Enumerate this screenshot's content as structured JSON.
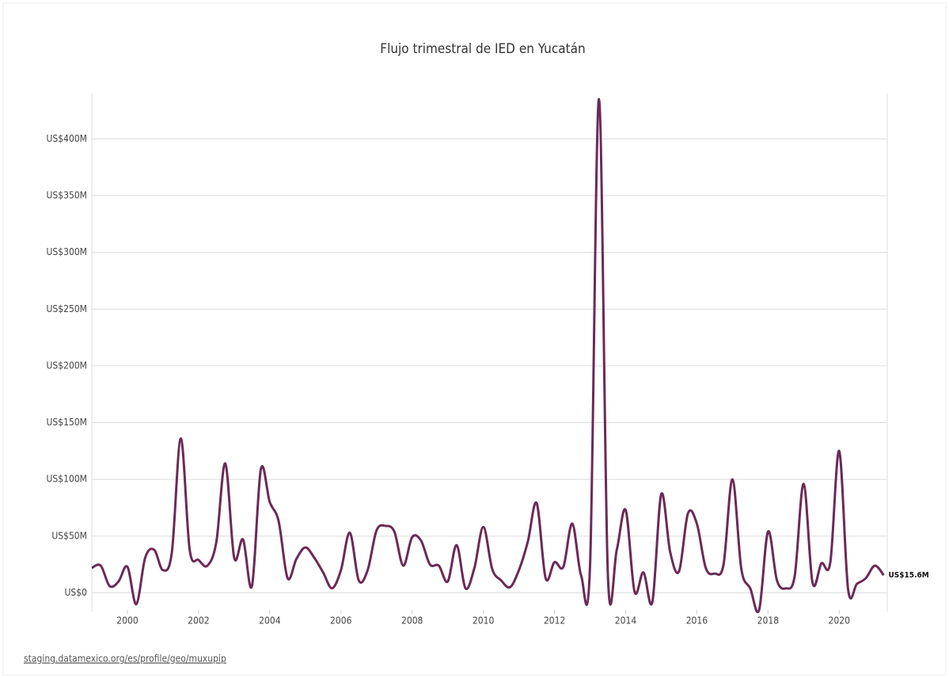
{
  "chart_data": {
    "type": "line",
    "title": "Flujo trimestral de IED en Yucatán",
    "source": "staging.datamexico.org/es/profile/geo/muxupip",
    "x": [
      1999,
      1999.25,
      1999.5,
      1999.75,
      2000,
      2000.25,
      2000.5,
      2000.75,
      2001,
      2001.25,
      2001.5,
      2001.75,
      2002,
      2002.25,
      2002.5,
      2002.75,
      2003,
      2003.25,
      2003.5,
      2003.75,
      2004,
      2004.25,
      2004.5,
      2004.75,
      2005,
      2005.25,
      2005.5,
      2005.75,
      2006,
      2006.25,
      2006.5,
      2006.75,
      2007,
      2007.25,
      2007.5,
      2007.75,
      2008,
      2008.25,
      2008.5,
      2008.75,
      2009,
      2009.25,
      2009.5,
      2009.75,
      2010,
      2010.25,
      2010.5,
      2010.75,
      2011,
      2011.25,
      2011.5,
      2011.75,
      2012,
      2012.25,
      2012.5,
      2012.75,
      2013,
      2013.25,
      2013.5,
      2013.75,
      2014,
      2014.25,
      2014.5,
      2014.75,
      2015,
      2015.25,
      2015.5,
      2015.75,
      2016,
      2016.25,
      2016.5,
      2016.75,
      2017,
      2017.25,
      2017.5,
      2017.75,
      2018,
      2018.25,
      2018.5,
      2018.75,
      2019,
      2019.25,
      2019.5,
      2019.75,
      2020,
      2020.25,
      2020.5,
      2020.75,
      2021,
      2021.25
    ],
    "series": [
      {
        "color": "#6b2a56",
        "values": [
          22,
          24,
          6,
          10,
          23,
          -10,
          31,
          38,
          20,
          36,
          136,
          38,
          29,
          24,
          45,
          114,
          31,
          47,
          6,
          109,
          80,
          63,
          13,
          30,
          40,
          31,
          18,
          4,
          20,
          53,
          11,
          20,
          55,
          59,
          54,
          24,
          49,
          46,
          25,
          24,
          10,
          42,
          4,
          22,
          58,
          21,
          11,
          5,
          20,
          45,
          79,
          13,
          27,
          23,
          61,
          15,
          25,
          435,
          16,
          38,
          73,
          1,
          18,
          -8,
          87,
          36,
          19,
          70,
          61,
          22,
          17,
          25,
          100,
          21,
          4,
          -15,
          54,
          11,
          4,
          15,
          96,
          9,
          26,
          27,
          125,
          3,
          8,
          13,
          24,
          15.6
        ]
      }
    ],
    "end_label": "US$15.6M",
    "xlim": [
      1999,
      2021.35
    ],
    "xticks": [
      2000,
      2002,
      2004,
      2006,
      2008,
      2010,
      2012,
      2014,
      2016,
      2018,
      2020
    ],
    "ylim": [
      -15,
      440
    ],
    "yticks": [
      {
        "value": 0,
        "label": "US$0"
      },
      {
        "value": 50,
        "label": "US$50M"
      },
      {
        "value": 100,
        "label": "US$100M"
      },
      {
        "value": 150,
        "label": "US$150M"
      },
      {
        "value": 200,
        "label": "US$200M"
      },
      {
        "value": 250,
        "label": "US$250M"
      },
      {
        "value": 300,
        "label": "US$300M"
      },
      {
        "value": 350,
        "label": "US$350M"
      },
      {
        "value": 400,
        "label": "US$400M"
      }
    ],
    "grid": true
  }
}
